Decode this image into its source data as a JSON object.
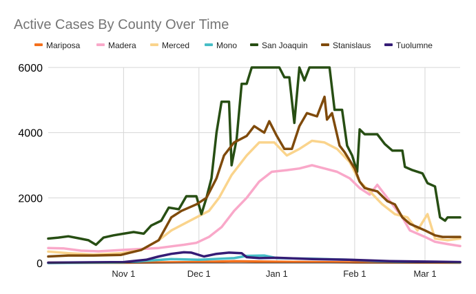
{
  "chart_data": {
    "type": "line",
    "title": "Active Cases By County Over Time",
    "xlabel": "",
    "ylabel": "",
    "x_start": "2020-10-02",
    "x_end": "2021-03-15",
    "ylim": [
      0,
      6000
    ],
    "yticks": [
      0,
      2000,
      4000,
      6000
    ],
    "xticks": [
      {
        "date": "2020-11-01",
        "label": "Nov 1"
      },
      {
        "date": "2020-12-01",
        "label": "Dec 1"
      },
      {
        "date": "2021-01-01",
        "label": "Jan 1"
      },
      {
        "date": "2021-02-01",
        "label": "Feb 1"
      },
      {
        "date": "2021-03-01",
        "label": "Mar 1"
      }
    ],
    "grid": true,
    "legend_position": "top",
    "series": [
      {
        "name": "Mariposa",
        "color": "#f4701c",
        "points": [
          [
            "2020-10-02",
            10
          ],
          [
            "2020-11-01",
            10
          ],
          [
            "2020-12-01",
            30
          ],
          [
            "2020-12-15",
            55
          ],
          [
            "2021-01-01",
            40
          ],
          [
            "2021-02-01",
            20
          ],
          [
            "2021-03-15",
            10
          ]
        ]
      },
      {
        "name": "Madera",
        "color": "#f9a8c9",
        "points": [
          [
            "2020-10-02",
            460
          ],
          [
            "2020-10-08",
            450
          ],
          [
            "2020-10-15",
            380
          ],
          [
            "2020-10-22",
            360
          ],
          [
            "2020-10-31",
            400
          ],
          [
            "2020-11-05",
            420
          ],
          [
            "2020-11-15",
            460
          ],
          [
            "2020-11-25",
            560
          ],
          [
            "2020-11-30",
            620
          ],
          [
            "2020-12-05",
            800
          ],
          [
            "2020-12-10",
            1100
          ],
          [
            "2020-12-15",
            1600
          ],
          [
            "2020-12-20",
            2000
          ],
          [
            "2020-12-25",
            2500
          ],
          [
            "2020-12-30",
            2800
          ],
          [
            "2021-01-05",
            2850
          ],
          [
            "2021-01-10",
            2900
          ],
          [
            "2021-01-15",
            3000
          ],
          [
            "2021-01-20",
            2900
          ],
          [
            "2021-01-25",
            2800
          ],
          [
            "2021-01-30",
            2600
          ],
          [
            "2021-02-03",
            2300
          ],
          [
            "2021-02-07",
            2100
          ],
          [
            "2021-02-10",
            2400
          ],
          [
            "2021-02-15",
            1900
          ],
          [
            "2021-02-20",
            1400
          ],
          [
            "2021-02-23",
            1000
          ],
          [
            "2021-03-01",
            800
          ],
          [
            "2021-03-05",
            650
          ],
          [
            "2021-03-10",
            580
          ],
          [
            "2021-03-15",
            520
          ]
        ]
      },
      {
        "name": "Merced",
        "color": "#fad48c",
        "points": [
          [
            "2020-10-02",
            350
          ],
          [
            "2020-10-10",
            300
          ],
          [
            "2020-10-20",
            260
          ],
          [
            "2020-10-31",
            300
          ],
          [
            "2020-11-08",
            400
          ],
          [
            "2020-11-15",
            700
          ],
          [
            "2020-11-20",
            1000
          ],
          [
            "2020-11-25",
            1200
          ],
          [
            "2020-11-30",
            1400
          ],
          [
            "2020-12-05",
            1600
          ],
          [
            "2020-12-09",
            2000
          ],
          [
            "2020-12-14",
            2700
          ],
          [
            "2020-12-20",
            3300
          ],
          [
            "2020-12-25",
            3700
          ],
          [
            "2020-12-31",
            3700
          ],
          [
            "2021-01-05",
            3300
          ],
          [
            "2021-01-10",
            3500
          ],
          [
            "2021-01-15",
            3750
          ],
          [
            "2021-01-20",
            3700
          ],
          [
            "2021-01-25",
            3500
          ],
          [
            "2021-01-30",
            3100
          ],
          [
            "2021-02-03",
            2500
          ],
          [
            "2021-02-07",
            2200
          ],
          [
            "2021-02-12",
            1800
          ],
          [
            "2021-02-17",
            1500
          ],
          [
            "2021-02-22",
            1400
          ],
          [
            "2021-02-26",
            1000
          ],
          [
            "2021-03-02",
            1500
          ],
          [
            "2021-03-05",
            750
          ],
          [
            "2021-03-10",
            700
          ],
          [
            "2021-03-15",
            750
          ]
        ]
      },
      {
        "name": "Mono",
        "color": "#46bdc6",
        "points": [
          [
            "2020-10-02",
            0
          ],
          [
            "2020-11-01",
            20
          ],
          [
            "2020-11-20",
            120
          ],
          [
            "2020-12-01",
            100
          ],
          [
            "2020-12-15",
            150
          ],
          [
            "2020-12-20",
            220
          ],
          [
            "2020-12-27",
            230
          ],
          [
            "2021-01-01",
            150
          ],
          [
            "2021-01-15",
            130
          ],
          [
            "2021-01-30",
            100
          ],
          [
            "2021-02-10",
            60
          ],
          [
            "2021-03-15",
            20
          ]
        ]
      },
      {
        "name": "San Joaquin",
        "color": "#274e13",
        "points": [
          [
            "2020-10-02",
            750
          ],
          [
            "2020-10-06",
            780
          ],
          [
            "2020-10-10",
            820
          ],
          [
            "2020-10-14",
            760
          ],
          [
            "2020-10-18",
            700
          ],
          [
            "2020-10-21",
            560
          ],
          [
            "2020-10-24",
            780
          ],
          [
            "2020-10-28",
            850
          ],
          [
            "2020-11-01",
            900
          ],
          [
            "2020-11-05",
            950
          ],
          [
            "2020-11-09",
            900
          ],
          [
            "2020-11-12",
            1150
          ],
          [
            "2020-11-16",
            1300
          ],
          [
            "2020-11-19",
            1700
          ],
          [
            "2020-11-23",
            1650
          ],
          [
            "2020-11-26",
            2050
          ],
          [
            "2020-11-30",
            2050
          ],
          [
            "2020-12-02",
            1500
          ],
          [
            "2020-12-04",
            2000
          ],
          [
            "2020-12-06",
            2600
          ],
          [
            "2020-12-08",
            4000
          ],
          [
            "2020-12-10",
            4950
          ],
          [
            "2020-12-13",
            4950
          ],
          [
            "2020-12-14",
            3000
          ],
          [
            "2020-12-16",
            3800
          ],
          [
            "2020-12-18",
            5500
          ],
          [
            "2020-12-20",
            5500
          ],
          [
            "2020-12-22",
            6000
          ],
          [
            "2020-12-26",
            6000
          ],
          [
            "2020-12-28",
            6000
          ],
          [
            "2020-12-30",
            6000
          ],
          [
            "2021-01-02",
            6000
          ],
          [
            "2021-01-04",
            5700
          ],
          [
            "2021-01-06",
            5700
          ],
          [
            "2021-01-08",
            4300
          ],
          [
            "2021-01-10",
            6000
          ],
          [
            "2021-01-12",
            5600
          ],
          [
            "2021-01-14",
            6000
          ],
          [
            "2021-01-16",
            6000
          ],
          [
            "2021-01-20",
            6000
          ],
          [
            "2021-01-22",
            6000
          ],
          [
            "2021-01-24",
            4700
          ],
          [
            "2021-01-27",
            4700
          ],
          [
            "2021-01-29",
            3600
          ],
          [
            "2021-01-31",
            3300
          ],
          [
            "2021-02-02",
            2800
          ],
          [
            "2021-02-03",
            4100
          ],
          [
            "2021-02-05",
            3950
          ],
          [
            "2021-02-10",
            3950
          ],
          [
            "2021-02-13",
            3650
          ],
          [
            "2021-02-16",
            3450
          ],
          [
            "2021-02-20",
            3450
          ],
          [
            "2021-02-21",
            2950
          ],
          [
            "2021-02-24",
            2850
          ],
          [
            "2021-02-28",
            2750
          ],
          [
            "2021-03-02",
            2450
          ],
          [
            "2021-03-05",
            2350
          ],
          [
            "2021-03-07",
            1400
          ],
          [
            "2021-03-09",
            1300
          ],
          [
            "2021-03-10",
            1400
          ],
          [
            "2021-03-15",
            1400
          ]
        ]
      },
      {
        "name": "Stanislaus",
        "color": "#7f4a0b",
        "points": [
          [
            "2020-10-02",
            200
          ],
          [
            "2020-10-10",
            230
          ],
          [
            "2020-10-20",
            230
          ],
          [
            "2020-10-31",
            250
          ],
          [
            "2020-11-08",
            400
          ],
          [
            "2020-11-15",
            700
          ],
          [
            "2020-11-20",
            1400
          ],
          [
            "2020-11-24",
            1600
          ],
          [
            "2020-11-30",
            1800
          ],
          [
            "2020-12-04",
            2000
          ],
          [
            "2020-12-08",
            2600
          ],
          [
            "2020-12-11",
            3300
          ],
          [
            "2020-12-15",
            3700
          ],
          [
            "2020-12-20",
            3900
          ],
          [
            "2020-12-23",
            4200
          ],
          [
            "2020-12-27",
            4000
          ],
          [
            "2020-12-29",
            4350
          ],
          [
            "2021-01-01",
            3900
          ],
          [
            "2021-01-04",
            3500
          ],
          [
            "2021-01-07",
            3500
          ],
          [
            "2021-01-10",
            4200
          ],
          [
            "2021-01-13",
            4600
          ],
          [
            "2021-01-17",
            4500
          ],
          [
            "2021-01-20",
            5100
          ],
          [
            "2021-01-21",
            4400
          ],
          [
            "2021-01-23",
            4600
          ],
          [
            "2021-01-26",
            3600
          ],
          [
            "2021-01-28",
            3400
          ],
          [
            "2021-02-01",
            2900
          ],
          [
            "2021-02-03",
            2500
          ],
          [
            "2021-02-05",
            2300
          ],
          [
            "2021-02-10",
            2200
          ],
          [
            "2021-02-14",
            1900
          ],
          [
            "2021-02-17",
            1800
          ],
          [
            "2021-02-20",
            1400
          ],
          [
            "2021-02-23",
            1200
          ],
          [
            "2021-02-26",
            1100
          ],
          [
            "2021-03-01",
            1000
          ],
          [
            "2021-03-05",
            850
          ],
          [
            "2021-03-08",
            800
          ],
          [
            "2021-03-11",
            800
          ],
          [
            "2021-03-15",
            800
          ]
        ]
      },
      {
        "name": "Tuolumne",
        "color": "#351c75",
        "points": [
          [
            "2020-10-02",
            10
          ],
          [
            "2020-11-01",
            30
          ],
          [
            "2020-11-10",
            100
          ],
          [
            "2020-11-15",
            200
          ],
          [
            "2020-11-20",
            280
          ],
          [
            "2020-11-25",
            330
          ],
          [
            "2020-11-28",
            320
          ],
          [
            "2020-12-03",
            200
          ],
          [
            "2020-12-08",
            280
          ],
          [
            "2020-12-13",
            320
          ],
          [
            "2020-12-18",
            300
          ],
          [
            "2020-12-20",
            180
          ],
          [
            "2020-12-25",
            150
          ],
          [
            "2021-01-01",
            160
          ],
          [
            "2021-01-15",
            120
          ],
          [
            "2021-01-30",
            100
          ],
          [
            "2021-02-15",
            60
          ],
          [
            "2021-03-15",
            30
          ]
        ]
      }
    ]
  }
}
